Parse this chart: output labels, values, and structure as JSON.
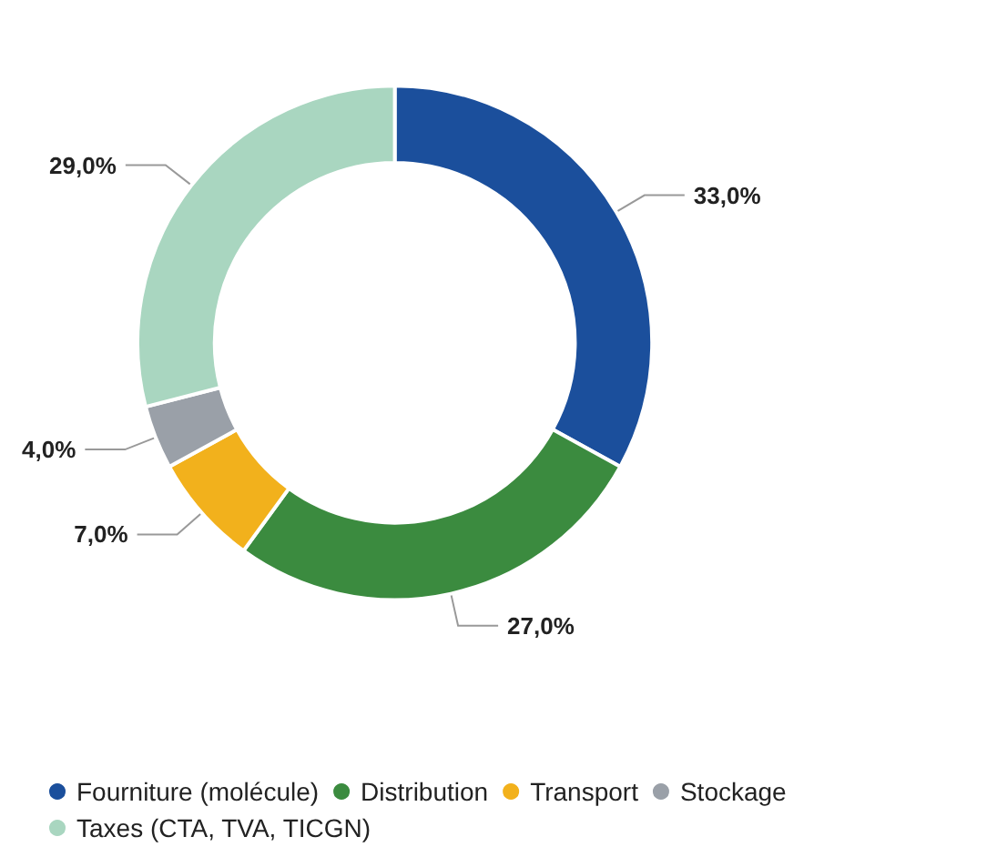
{
  "chart_data": {
    "type": "donut",
    "categories": [
      "Fourniture (molécule)",
      "Distribution",
      "Transport",
      "Stockage",
      "Taxes (CTA, TVA, TICGN)"
    ],
    "values": [
      33.0,
      27.0,
      7.0,
      4.0,
      29.0
    ],
    "colors": [
      "#1b4f9c",
      "#3b8b3f",
      "#f2b11c",
      "#9aa0a8",
      "#a9d6c0"
    ],
    "value_labels": [
      "33,0%",
      "27,0%",
      "7,0%",
      "4,0%",
      "29,0%"
    ],
    "legend": "bottom left"
  }
}
